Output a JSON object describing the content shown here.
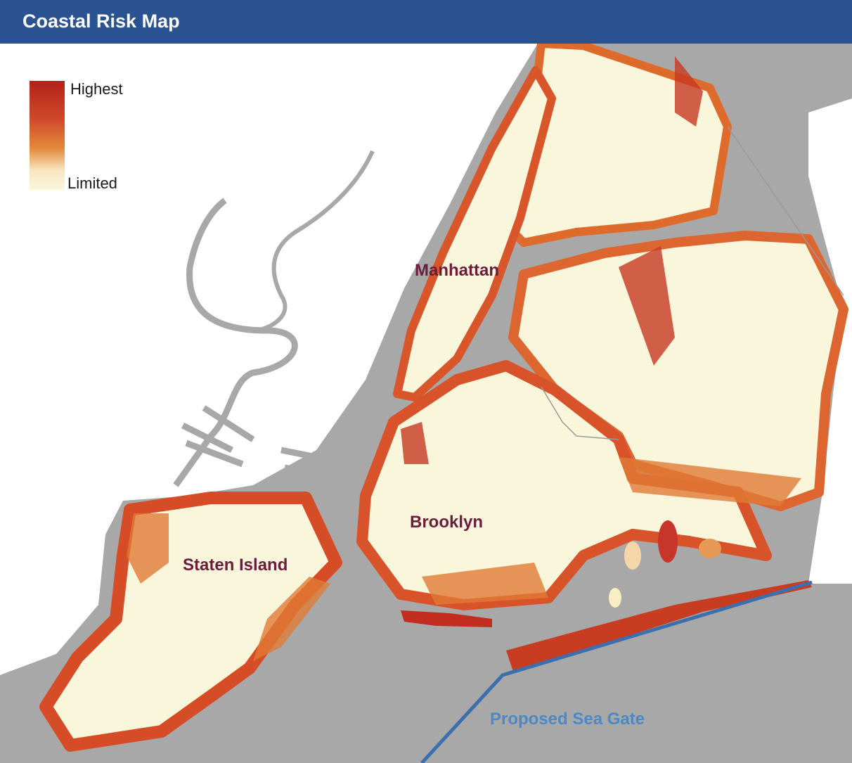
{
  "header": {
    "title": "Coastal Risk Map"
  },
  "legend": {
    "high": "Highest",
    "low": "Limited"
  },
  "labels": {
    "manhattan": "Manhattan",
    "brooklyn": "Brooklyn",
    "staten_island": "Staten Island"
  },
  "sea_gate": {
    "label": "Proposed Sea Gate"
  }
}
